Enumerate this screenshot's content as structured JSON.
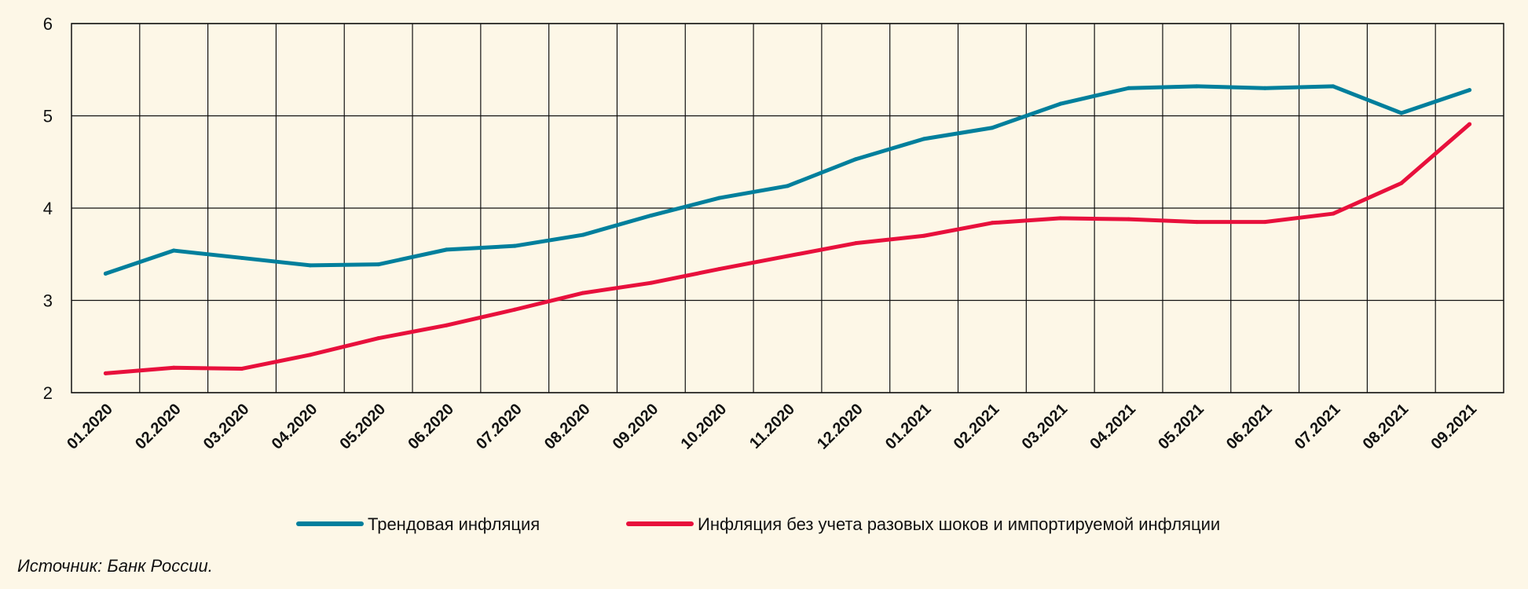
{
  "chart_data": {
    "type": "line",
    "title": "",
    "xlabel": "",
    "ylabel": "",
    "ylim": [
      2,
      6
    ],
    "yticks": [
      "2",
      "3",
      "4",
      "5",
      "6"
    ],
    "grid": true,
    "legend_position": "bottom",
    "categories": [
      "01.2020",
      "02.2020",
      "03.2020",
      "04.2020",
      "05.2020",
      "06.2020",
      "07.2020",
      "08.2020",
      "09.2020",
      "10.2020",
      "11.2020",
      "12.2020",
      "01.2021",
      "02.2021",
      "03.2021",
      "04.2021",
      "05.2021",
      "06.2021",
      "07.2021",
      "08.2021",
      "09.2021"
    ],
    "series": [
      {
        "name": "Трендовая инфляция",
        "color": "#007f9c",
        "values": [
          3.29,
          3.54,
          3.46,
          3.38,
          3.39,
          3.55,
          3.59,
          3.71,
          3.92,
          4.11,
          4.24,
          4.53,
          4.75,
          4.87,
          5.13,
          5.3,
          5.32,
          5.3,
          5.32,
          5.03,
          5.28
        ]
      },
      {
        "name": "Инфляция без учета разовых шоков и импортируемой инфляции",
        "color": "#e8103c",
        "values": [
          2.21,
          2.27,
          2.26,
          2.41,
          2.59,
          2.73,
          2.9,
          3.08,
          3.19,
          3.34,
          3.48,
          3.62,
          3.7,
          3.84,
          3.89,
          3.88,
          3.85,
          3.85,
          3.94,
          4.27,
          4.91
        ]
      }
    ]
  },
  "source": "Источник:  Банк России."
}
